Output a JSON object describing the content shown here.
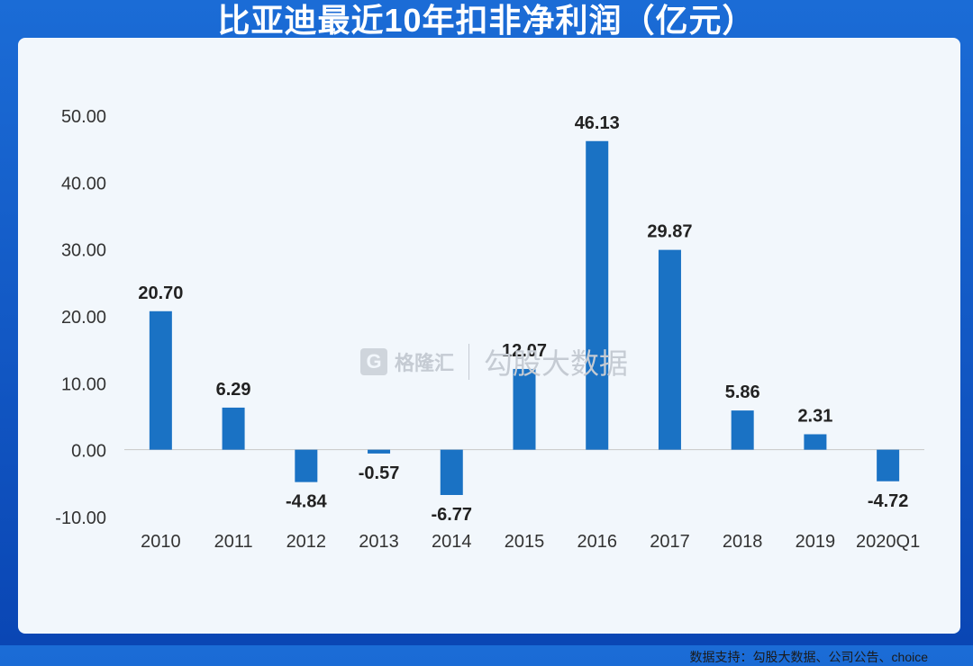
{
  "title": "比亚迪最近10年扣非净利润（亿元）",
  "watermark": {
    "logo": "G",
    "brand": "格隆汇",
    "sub": "勾股大数据"
  },
  "source": "数据支持：勾股大数据、公司公告、choice",
  "colors": {
    "bar": "#1a72c4",
    "axis": "#c8c8c8",
    "text": "#222222",
    "tick": "#333333"
  },
  "chart_data": {
    "type": "bar",
    "categories": [
      "2010",
      "2011",
      "2012",
      "2013",
      "2014",
      "2015",
      "2016",
      "2017",
      "2018",
      "2019",
      "2020Q1"
    ],
    "values": [
      20.7,
      6.29,
      -4.84,
      -0.57,
      -6.77,
      12.07,
      46.13,
      29.87,
      5.86,
      2.31,
      -4.72
    ],
    "labels": [
      "20.70",
      "6.29",
      "-4.84",
      "-0.57",
      "-6.77",
      "12.07",
      "46.13",
      "29.87",
      "5.86",
      "2.31",
      "-4.72"
    ],
    "yticks": [
      "50.00",
      "40.00",
      "30.00",
      "20.00",
      "10.00",
      "0.00",
      "-10.00"
    ],
    "ytick_values": [
      50,
      40,
      30,
      20,
      10,
      0,
      -10
    ],
    "ylim": [
      -10,
      50
    ],
    "grid": false,
    "legend": "none"
  }
}
